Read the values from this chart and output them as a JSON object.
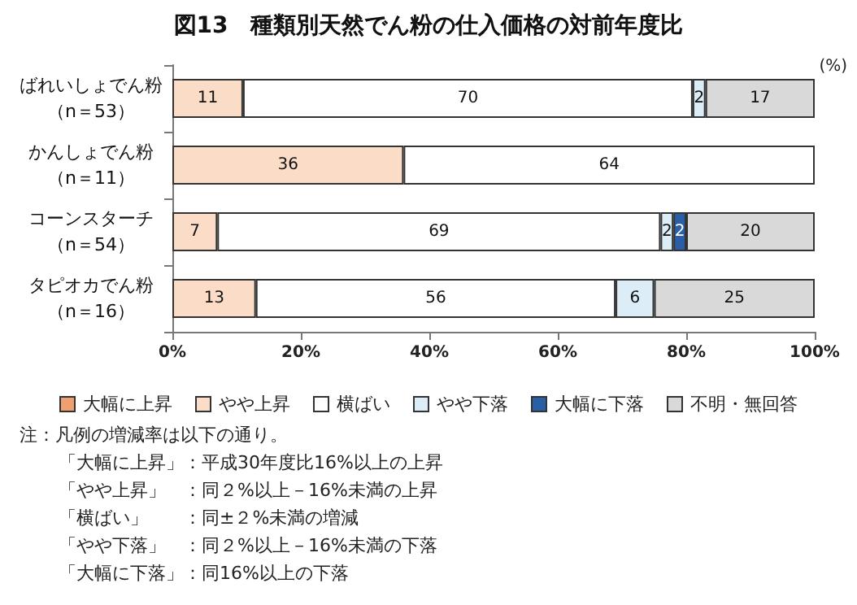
{
  "chart_data": {
    "type": "bar",
    "orientation": "horizontal",
    "stacked": true,
    "title": "図13　種類別天然でん粉の仕入価格の対前年度比",
    "categories": [
      "ばれいしょでん粉（n＝53）",
      "かんしょでん粉（n＝11）",
      "コーンスターチ（n＝54）",
      "タピオカでん粉（n＝16）"
    ],
    "series": [
      {
        "name": "大幅に上昇",
        "color": "#f0a070",
        "values": [
          null,
          null,
          null,
          null
        ]
      },
      {
        "name": "やや上昇",
        "color": "#fbdcc6",
        "values": [
          11,
          36,
          7,
          13
        ]
      },
      {
        "name": "横ばい",
        "color": "#ffffff",
        "values": [
          70,
          64,
          69,
          56
        ]
      },
      {
        "name": "やや下落",
        "color": "#dcedf7",
        "values": [
          2,
          null,
          2,
          6
        ]
      },
      {
        "name": "大幅に下落",
        "color": "#2a5ea6",
        "values": [
          null,
          null,
          2,
          null
        ]
      },
      {
        "name": "不明・無回答",
        "color": "#d9d9d9",
        "values": [
          17,
          null,
          20,
          25
        ]
      }
    ],
    "xlim": [
      0,
      100
    ],
    "xticks": [
      {
        "value": 0,
        "label": "0%"
      },
      {
        "value": 20,
        "label": "20%"
      },
      {
        "value": 40,
        "label": "40%"
      },
      {
        "value": 60,
        "label": "60%"
      },
      {
        "value": 80,
        "label": "80%"
      },
      {
        "value": 100,
        "label": "100%"
      }
    ],
    "data_labels": true,
    "grid": false,
    "legend": "bottom",
    "annotations": [
      "(%)",
      "注：凡例の増減率は以下の通り。",
      "「大幅に上昇」：平成30年度比16%以上の上昇",
      "「やや上昇」　：同２%以上－16%未満の上昇",
      "「横ばい」　　：同±２%未満の増減",
      "「やや下落」　：同２%以上－16%未満の下落",
      "「大幅に下落」：同16%以上の下落"
    ]
  }
}
